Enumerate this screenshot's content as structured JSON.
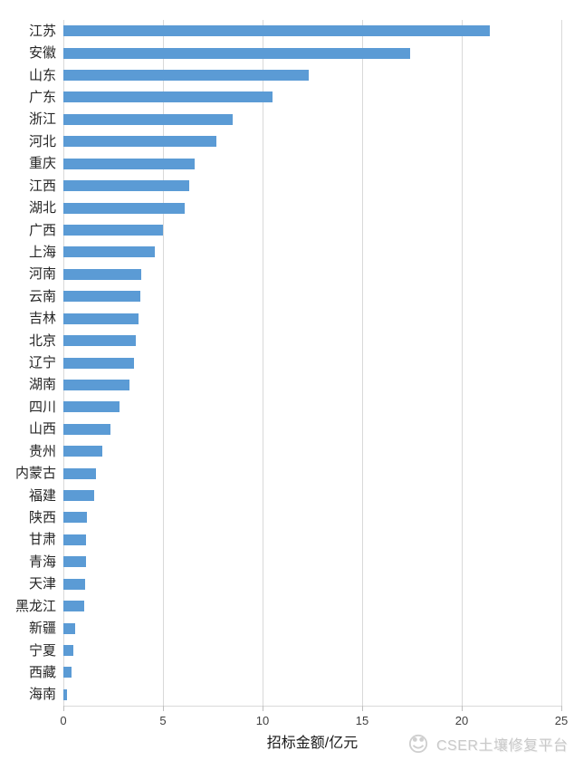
{
  "chart_data": {
    "type": "bar",
    "orientation": "horizontal",
    "title": "",
    "xlabel": "招标金额/亿元",
    "ylabel": "",
    "xlim": [
      0,
      25
    ],
    "xticks": [
      0,
      5,
      10,
      15,
      20,
      25
    ],
    "grid": "vertical-gridlines",
    "legend": "none",
    "categories": [
      "江苏",
      "安徽",
      "山东",
      "广东",
      "浙江",
      "河北",
      "重庆",
      "江西",
      "湖北",
      "广西",
      "上海",
      "河南",
      "云南",
      "吉林",
      "北京",
      "辽宁",
      "湖南",
      "四川",
      "山西",
      "贵州",
      "内蒙古",
      "福建",
      "陕西",
      "甘肃",
      "青海",
      "天津",
      "黑龙江",
      "新疆",
      "宁夏",
      "西藏",
      "海南"
    ],
    "values": [
      21.4,
      17.4,
      12.3,
      10.5,
      8.5,
      7.7,
      6.6,
      6.3,
      6.1,
      5.0,
      4.6,
      3.9,
      3.85,
      3.75,
      3.65,
      3.55,
      3.3,
      2.8,
      2.35,
      1.95,
      1.65,
      1.55,
      1.2,
      1.15,
      1.15,
      1.1,
      1.05,
      0.6,
      0.5,
      0.4,
      0.17
    ]
  },
  "axis": {
    "xlabel": "招标金额/亿元",
    "tick_labels": [
      "0",
      "5",
      "10",
      "15",
      "20",
      "25"
    ]
  },
  "watermark": {
    "text": "CSER土壤修复平台",
    "icon": "cser-logo-icon"
  },
  "colors": {
    "bar": "#5B9BD5",
    "gridline": "#D9D9D9",
    "tick_mark": "#BFBFBF",
    "tick_label": "#404040",
    "category_label": "#262626",
    "axis_label": "#1A1A1A",
    "watermark": "#C9C9C9",
    "background": "#FFFFFF"
  }
}
